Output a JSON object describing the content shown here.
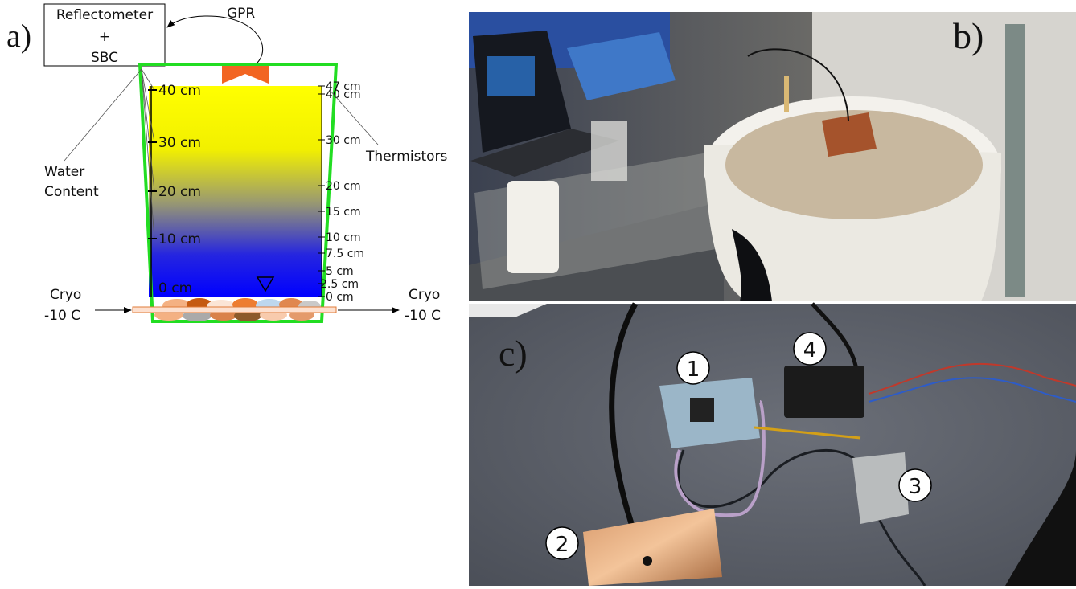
{
  "panels": {
    "a": {
      "label": "a)",
      "box": [
        "Reflectometer",
        "+",
        "SBC"
      ],
      "gpr": "GPR",
      "water_content": [
        "Water",
        "Content"
      ],
      "thermistors": "Thermistors",
      "left_scale": [
        "40 cm",
        "30 cm",
        "20 cm",
        "10 cm",
        "0 cm"
      ],
      "right_scale": [
        "47 cm",
        "40 cm",
        "30 cm",
        "20 cm",
        "15 cm",
        "10 cm",
        "7.5 cm",
        "5 cm",
        "2.5 cm",
        "0 cm"
      ],
      "cryo_left": [
        "Cryo",
        "-10 C"
      ],
      "cryo_right": [
        "Cryo",
        "-10 C"
      ]
    },
    "b": {
      "label": "b)"
    },
    "c": {
      "label": "c)",
      "callouts": [
        "1",
        "2",
        "3",
        "4"
      ]
    }
  }
}
